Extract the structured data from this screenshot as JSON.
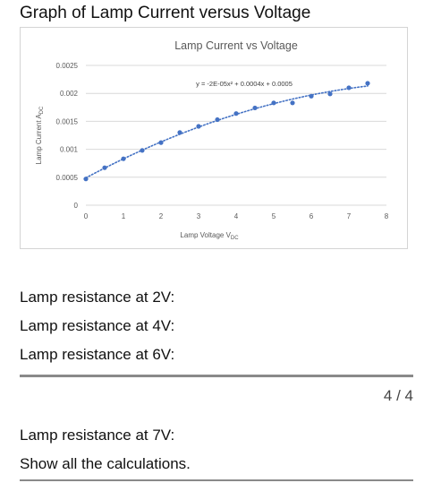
{
  "heading": "Graph of Lamp Current versus Voltage",
  "chart_data": {
    "type": "scatter",
    "title": "Lamp Current vs Voltage",
    "xlabel": "Lamp Voltage V",
    "xlabel_sub": "DC",
    "ylabel": "Lamp Current A",
    "ylabel_sub": "DC",
    "xlim": [
      0,
      8
    ],
    "ylim": [
      0,
      0.0025
    ],
    "x_ticks": [
      "0",
      "1",
      "2",
      "3",
      "4",
      "5",
      "6",
      "7",
      "8"
    ],
    "y_ticks": [
      "0",
      "0.0005",
      "0.001",
      "0.0015",
      "0.002",
      "0.0025"
    ],
    "grid": true,
    "trendline": "polynomial (order 2), dotted",
    "equation": "y = -2E-05x² + 0.0004x + 0.0005",
    "marker_color": "#4472c4",
    "points": [
      {
        "x": 0,
        "y": 0.00047
      },
      {
        "x": 0.5,
        "y": 0.00067
      },
      {
        "x": 1.0,
        "y": 0.00083
      },
      {
        "x": 1.5,
        "y": 0.00098
      },
      {
        "x": 2.0,
        "y": 0.00112
      },
      {
        "x": 2.5,
        "y": 0.0013
      },
      {
        "x": 3.0,
        "y": 0.00141
      },
      {
        "x": 3.5,
        "y": 0.00153
      },
      {
        "x": 4.0,
        "y": 0.00164
      },
      {
        "x": 4.5,
        "y": 0.00174
      },
      {
        "x": 5.0,
        "y": 0.00183
      },
      {
        "x": 5.5,
        "y": 0.00183
      },
      {
        "x": 6.0,
        "y": 0.00195
      },
      {
        "x": 6.5,
        "y": 0.00199
      },
      {
        "x": 7.0,
        "y": 0.0021
      },
      {
        "x": 7.5,
        "y": 0.00218
      }
    ]
  },
  "questions": {
    "q1": "Lamp resistance at 2V:",
    "q2": "Lamp resistance at 4V:",
    "q3": "Lamp resistance at 6V:",
    "q4": "Lamp resistance at 7V:",
    "q5": "Show all the calculations."
  },
  "pager": "4 / 4"
}
